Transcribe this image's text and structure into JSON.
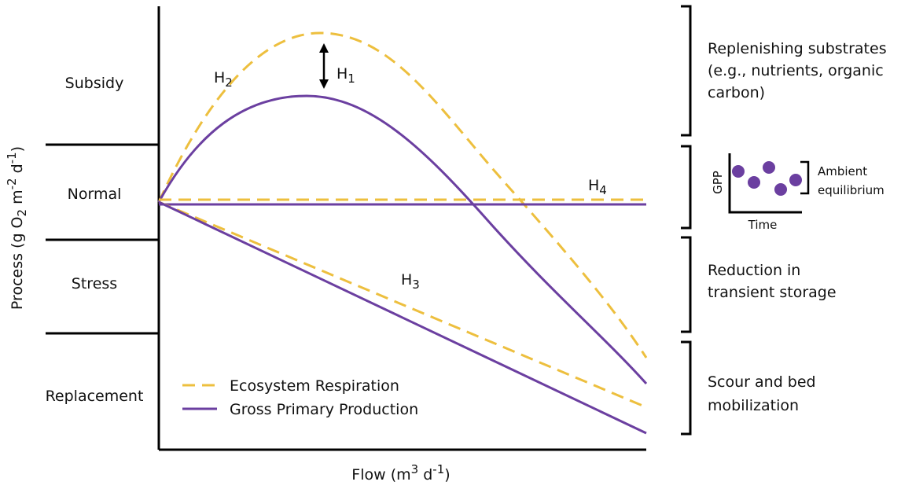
{
  "zones": [
    "Subsidy",
    "Normal",
    "Stress",
    "Replacement"
  ],
  "y_axis_label": [
    "Process (g O",
    "2",
    " m",
    "-2",
    " d",
    "-1",
    ")"
  ],
  "x_axis_label": [
    "Flow  (m",
    "3",
    "  d",
    "-1",
    ")"
  ],
  "hypotheses": [
    {
      "letter": "H",
      "sub": "1"
    },
    {
      "letter": "H",
      "sub": "2"
    },
    {
      "letter": "H",
      "sub": "3"
    },
    {
      "letter": "H",
      "sub": "4"
    }
  ],
  "legend": [
    "Ecosystem Respiration",
    "Gross Primary Production"
  ],
  "annotations": {
    "subsidy": [
      "Replenishing substrates",
      "(e.g., nutrients, organic",
      "carbon)"
    ],
    "normal": {
      "y_label": "GPP",
      "x_label": "Time",
      "note": [
        "Ambient",
        "equilibrium"
      ]
    },
    "stress": [
      "Reduction in",
      "transient storage"
    ],
    "replacement": [
      "Scour and bed",
      "mobilization"
    ]
  }
}
